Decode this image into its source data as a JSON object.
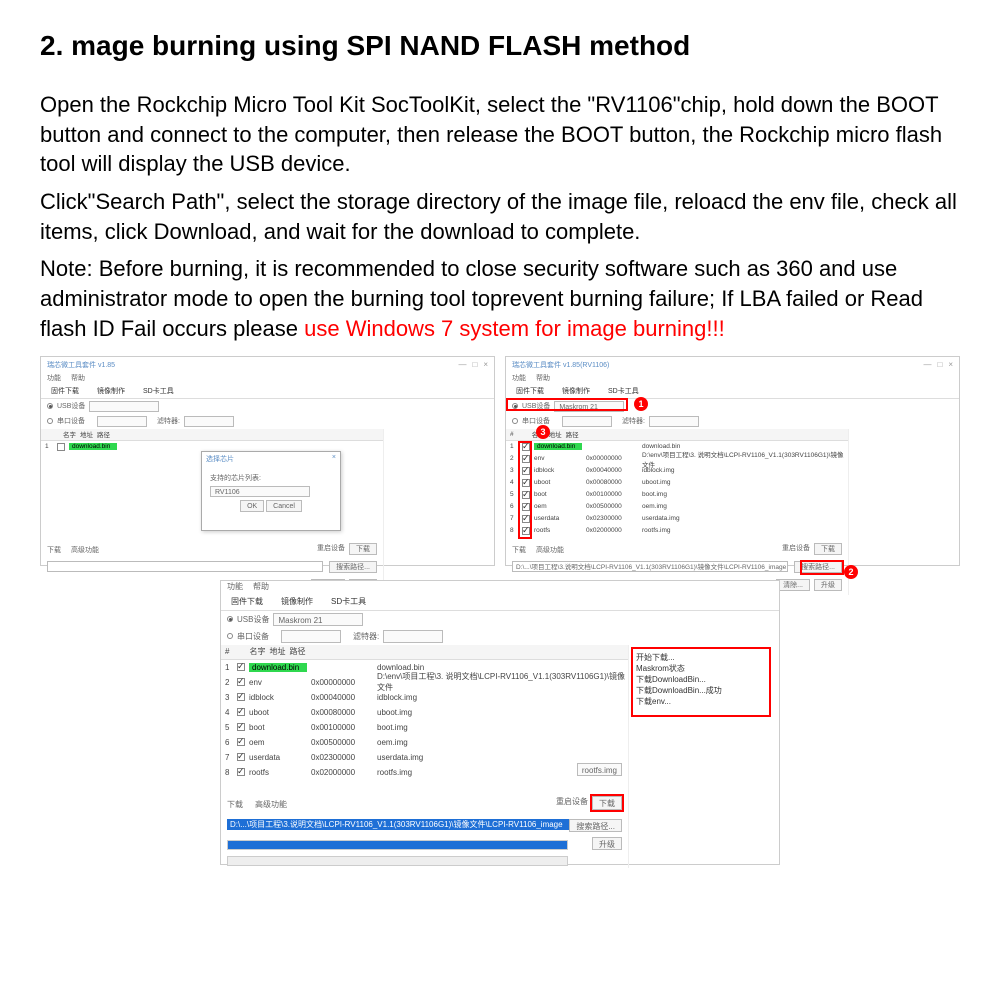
{
  "heading": "2. mage burning using SPI NAND FLASH method",
  "para1": "Open the Rockchip Micro Tool Kit SocToolKit, select the \"RV1106\"chip, hold down the BOOT button and connect to the computer, then release the BOOT button, the Rockchip micro flash tool will display the USB device.",
  "para2": "Click\"Search Path\", select the storage directory of the image file, reloacd the env file, check all items, click Download, and wait for the download to complete.",
  "para3a": "Note: Before burning, it is recommended to close security software such as 360 and use administrator mode to open the burning tool toprevent burning failure; If LBA failed or Read flash ID Fail occurs please ",
  "para3b": "use Windows 7 system for image burning!!!",
  "app": {
    "title1": "瑞芯微工具套件 v1.85",
    "title2": "瑞芯微工具套件 v1.85(RV1106)",
    "menu_fn": "功能",
    "menu_help": "帮助",
    "tab_fw": "固件下载",
    "tab_img": "镜像制作",
    "tab_sd": "SD卡工具",
    "radio_usb": "USB设备",
    "radio_serial": "串口设备",
    "maskrom": "Maskrom  21",
    "filter_label": "滤特器:",
    "col_idx": "#",
    "col_name": "名字",
    "col_addr": "地址",
    "col_path": "路径",
    "download_bin": "download.bin",
    "tab_dl": "下载",
    "tab_adv": "高级功能",
    "btn_reboot": "重启设备",
    "btn_download": "下载",
    "btn_search": "搜索路径...",
    "btn_clear": "清除...",
    "btn_upgrade": "升级",
    "path_value": "D:\\...\\项目工程\\3.说明文档\\LCPI-RV1106_V1.1(303RV1106G1)\\镜像文件\\LCPI-RV1106_image",
    "rootfs_img": "rootfs.img"
  },
  "dialog": {
    "title": "选择芯片",
    "label": "支持的芯片列表:",
    "value": "RV1106",
    "ok": "OK",
    "cancel": "Cancel"
  },
  "rows": [
    {
      "i": "1",
      "name": "",
      "addr": "",
      "path": "download.bin",
      "green": true
    },
    {
      "i": "2",
      "name": "env",
      "addr": "0x00000000",
      "path": "D:\\env\\项目工程\\3. 说明文档\\LCPI-RV1106_V1.1(303RV1106G1)\\镜像文件"
    },
    {
      "i": "3",
      "name": "idblock",
      "addr": "0x00040000",
      "path": "idblock.img"
    },
    {
      "i": "4",
      "name": "uboot",
      "addr": "0x00080000",
      "path": "uboot.img"
    },
    {
      "i": "5",
      "name": "boot",
      "addr": "0x00100000",
      "path": "boot.img"
    },
    {
      "i": "6",
      "name": "oem",
      "addr": "0x00500000",
      "path": "oem.img"
    },
    {
      "i": "7",
      "name": "userdata",
      "addr": "0x02300000",
      "path": "userdata.img"
    },
    {
      "i": "8",
      "name": "rootfs",
      "addr": "0x02000000",
      "path": "rootfs.img"
    }
  ],
  "log": {
    "l1": "开始下载...",
    "l2": "Maskrom状态",
    "l3": "下载DownloadBin...",
    "l4": "下载DownloadBin...成功",
    "l5": "下载env..."
  },
  "colors": {
    "red": "#ff0000",
    "green_hl": "#2fd84f",
    "blue_sel": "#1e6fd6",
    "link_blue": "#5a8cc4"
  }
}
